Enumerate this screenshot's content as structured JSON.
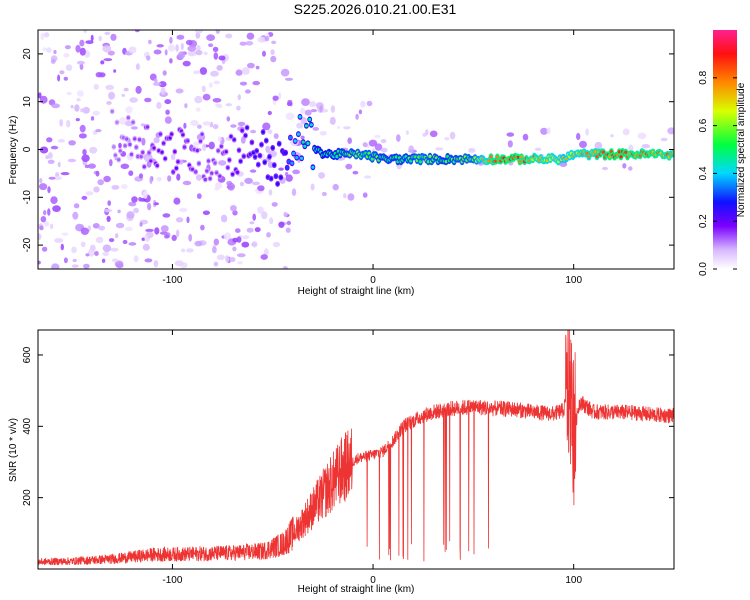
{
  "title": "S225.2026.010.21.00.E31",
  "chart_data": [
    {
      "type": "heatmap",
      "xlabel": "Height of straight line (km)",
      "ylabel": "Frequency (Hz)",
      "xlim": [
        -167,
        150
      ],
      "ylim": [
        -25,
        25
      ],
      "xticks": [
        -100,
        0,
        100
      ],
      "yticks": [
        -20,
        -10,
        0,
        10,
        20
      ],
      "colorbar": {
        "label": "Normalized spectral amplitude",
        "range": [
          0,
          1
        ],
        "ticks": [
          0.0,
          0.2,
          0.4,
          0.6,
          0.8
        ],
        "tick_labels": [
          "0.0",
          "0.2",
          "0.4",
          "0.6",
          "0.8"
        ]
      },
      "ridge": {
        "x": [
          -167,
          -140,
          -120,
          -100,
          -80,
          -60,
          -45,
          -35,
          -25,
          -15,
          -5,
          5,
          15,
          25,
          35,
          50,
          60,
          70,
          80,
          90,
          95,
          100,
          110,
          120,
          130,
          140,
          150
        ],
        "freq": [
          2,
          4,
          2,
          0,
          -2,
          1,
          -4,
          3,
          -1,
          -1,
          -1,
          -2,
          -2,
          -2,
          -2,
          -2,
          -2,
          -2,
          -2,
          -2,
          -2,
          -1,
          -1,
          -1,
          -1,
          -1,
          -1
        ],
        "amplitude": [
          0.05,
          0.1,
          0.15,
          0.2,
          0.15,
          0.25,
          0.3,
          0.45,
          0.5,
          0.55,
          0.6,
          0.55,
          0.55,
          0.6,
          0.55,
          0.6,
          0.85,
          0.9,
          0.8,
          0.75,
          0.7,
          0.75,
          0.8,
          0.9,
          0.85,
          0.85,
          0.8
        ]
      }
    },
    {
      "type": "line",
      "xlabel": "Height of straight line (km)",
      "ylabel": "SNR (10 * v/v)",
      "xlim": [
        -167,
        150
      ],
      "ylim": [
        0,
        670
      ],
      "xticks": [
        -100,
        0,
        100
      ],
      "yticks": [
        200,
        400,
        600
      ],
      "color": "#ee3333",
      "series": [
        {
          "x": [
            -167,
            -150,
            -130,
            -110,
            -90,
            -70,
            -55,
            -45,
            -38,
            -30,
            -22,
            -15,
            -8,
            0,
            5,
            10,
            15,
            20,
            25,
            30,
            40,
            50,
            60,
            70,
            80,
            90,
            95,
            98,
            100,
            103,
            110,
            120,
            130,
            140,
            150
          ],
          "values": [
            20,
            22,
            28,
            40,
            42,
            45,
            50,
            70,
            110,
            170,
            230,
            280,
            310,
            320,
            330,
            360,
            400,
            415,
            430,
            440,
            450,
            455,
            450,
            448,
            440,
            435,
            445,
            520,
            380,
            470,
            440,
            440,
            438,
            432,
            430
          ]
        }
      ]
    }
  ]
}
